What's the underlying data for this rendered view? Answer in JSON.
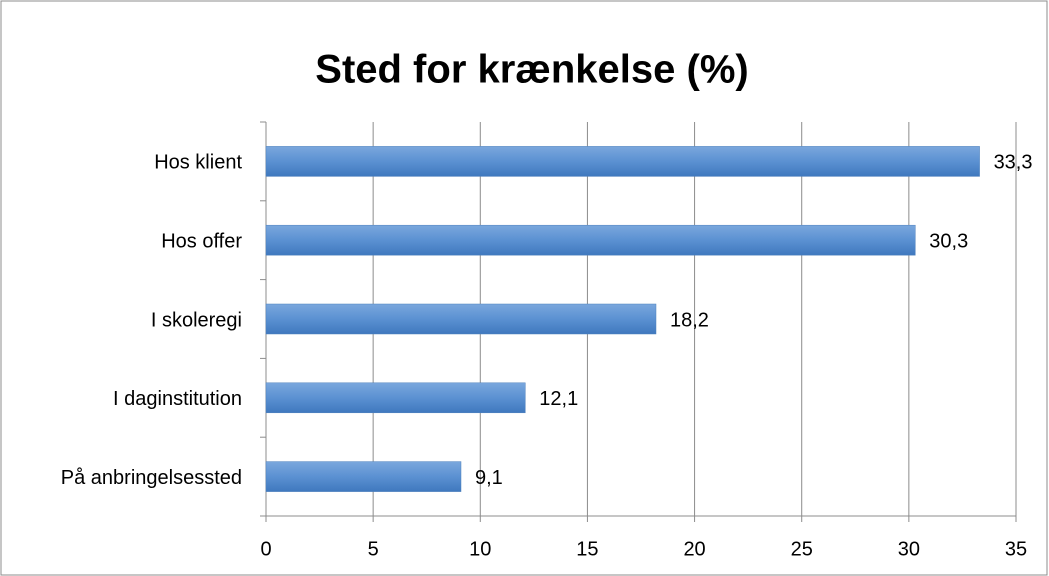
{
  "chart_data": {
    "type": "bar",
    "orientation": "horizontal",
    "title": "Sted for krænkelse (%)",
    "categories": [
      "Hos klient",
      "Hos offer",
      "I skoleregi",
      "I daginstitution",
      "På anbringelsessted"
    ],
    "values": [
      33.3,
      30.3,
      18.2,
      12.1,
      9.1
    ],
    "value_labels": [
      "33,3",
      "30,3",
      "18,2",
      "12,1",
      "9,1"
    ],
    "color": "#4f81bd",
    "xlim": [
      0,
      35
    ],
    "xticks": [
      0,
      5,
      10,
      15,
      20,
      25,
      30,
      35
    ],
    "grid": true
  }
}
